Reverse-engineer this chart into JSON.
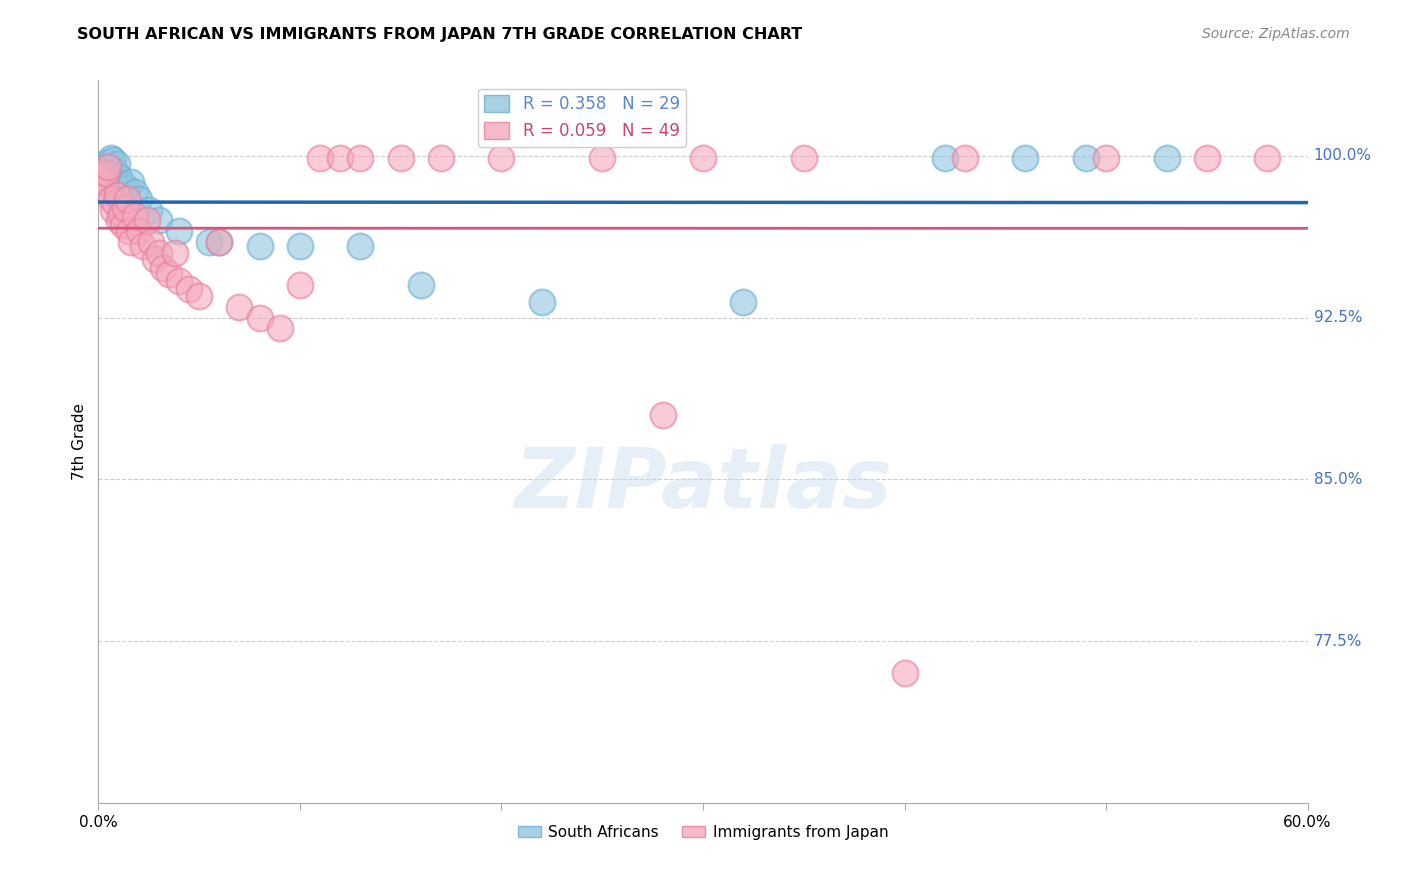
{
  "title": "SOUTH AFRICAN VS IMMIGRANTS FROM JAPAN 7TH GRADE CORRELATION CHART",
  "source": "Source: ZipAtlas.com",
  "ylabel": "7th Grade",
  "blue_R": 0.358,
  "blue_N": 29,
  "pink_R": 0.059,
  "pink_N": 49,
  "blue_color": "#92c5de",
  "pink_color": "#f4a9bb",
  "blue_edge_color": "#6baed6",
  "pink_edge_color": "#e87fa0",
  "blue_line_color": "#2166ac",
  "pink_line_color": "#d6537a",
  "blue_legend_color": "#5588cc",
  "pink_legend_color": "#cc4477",
  "xlim": [
    0.0,
    0.6
  ],
  "ylim": [
    0.7,
    1.035
  ],
  "ytick_positions": [
    0.775,
    0.85,
    0.925,
    1.0
  ],
  "ytick_labels": [
    "77.5%",
    "85.0%",
    "92.5%",
    "100.0%"
  ],
  "xtick_positions": [
    0.0,
    0.1,
    0.2,
    0.3,
    0.4,
    0.5,
    0.6
  ],
  "xtick_labels": [
    "0.0%",
    "",
    "",
    "",
    "",
    "",
    "60.0%"
  ],
  "watermark": "ZIPatlas",
  "blue_x": [
    0.002,
    0.003,
    0.004,
    0.005,
    0.006,
    0.007,
    0.008,
    0.009,
    0.01,
    0.012,
    0.014,
    0.016,
    0.018,
    0.02,
    0.025,
    0.03,
    0.04,
    0.055,
    0.06,
    0.08,
    0.1,
    0.13,
    0.16,
    0.22,
    0.32,
    0.42,
    0.46,
    0.49,
    0.53
  ],
  "blue_y": [
    0.992,
    0.989,
    0.995,
    0.997,
    0.999,
    0.998,
    0.993,
    0.996,
    0.99,
    0.987,
    0.985,
    0.988,
    0.983,
    0.98,
    0.975,
    0.97,
    0.965,
    0.96,
    0.96,
    0.958,
    0.958,
    0.958,
    0.94,
    0.932,
    0.932,
    0.999,
    0.999,
    0.999,
    0.999
  ],
  "pink_x": [
    0.001,
    0.002,
    0.003,
    0.004,
    0.005,
    0.006,
    0.007,
    0.008,
    0.009,
    0.01,
    0.011,
    0.012,
    0.013,
    0.014,
    0.015,
    0.016,
    0.018,
    0.02,
    0.022,
    0.024,
    0.026,
    0.028,
    0.03,
    0.032,
    0.035,
    0.038,
    0.04,
    0.045,
    0.05,
    0.06,
    0.07,
    0.08,
    0.09,
    0.1,
    0.11,
    0.12,
    0.13,
    0.15,
    0.17,
    0.2,
    0.25,
    0.28,
    0.3,
    0.35,
    0.4,
    0.43,
    0.5,
    0.55,
    0.58
  ],
  "pink_y": [
    0.99,
    0.985,
    0.988,
    0.992,
    0.995,
    0.98,
    0.975,
    0.978,
    0.982,
    0.97,
    0.973,
    0.968,
    0.976,
    0.98,
    0.965,
    0.96,
    0.972,
    0.965,
    0.958,
    0.97,
    0.96,
    0.952,
    0.955,
    0.948,
    0.945,
    0.955,
    0.942,
    0.938,
    0.935,
    0.96,
    0.93,
    0.925,
    0.92,
    0.94,
    0.999,
    0.999,
    0.999,
    0.999,
    0.999,
    0.999,
    0.999,
    0.88,
    0.999,
    0.999,
    0.76,
    0.999,
    0.999,
    0.999,
    0.999
  ]
}
